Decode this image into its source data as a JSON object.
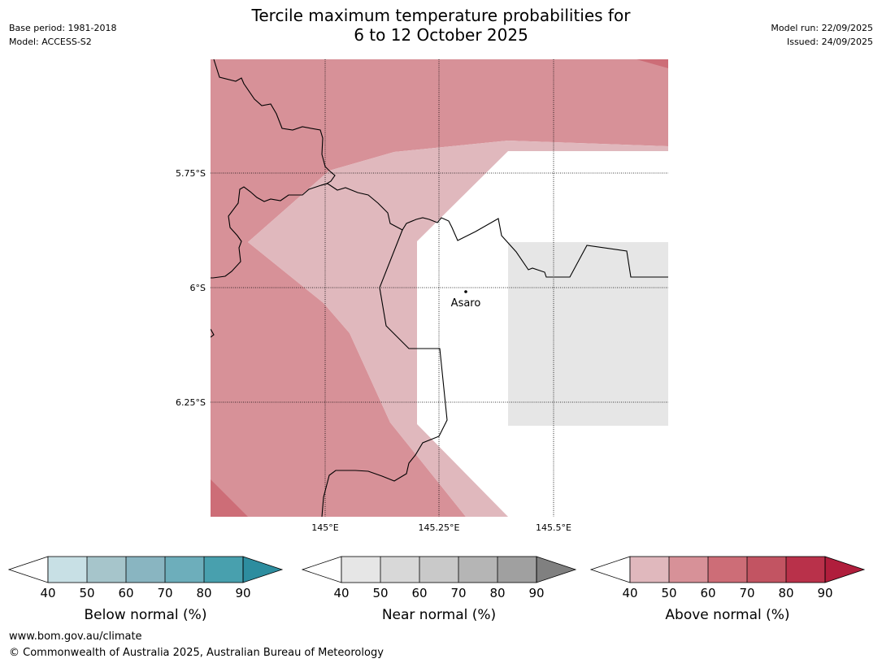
{
  "header": {
    "title_line1": "Tercile maximum temperature probabilities for",
    "title_line2": "6 to 12 October 2025",
    "base_period": "Base period: 1981-2018",
    "model": "Model: ACCESS-S2",
    "model_run": "Model run: 22/09/2025",
    "issued": "Issued: 24/09/2025"
  },
  "map": {
    "lat_labels": [
      "5.75°S",
      "6°S",
      "6.25°S"
    ],
    "lon_labels": [
      "145°E",
      "145.25°E",
      "145.5°E"
    ],
    "place": "Asaro",
    "colors": {
      "above_40": "#e0b8bd",
      "above_50": "#d79198",
      "above_60": "#cd6d77",
      "near_40": "#e6e6e6"
    }
  },
  "colorbars": [
    {
      "label": "Below normal (%)",
      "ticks": [
        "40",
        "50",
        "60",
        "70",
        "80",
        "90"
      ],
      "colors": [
        "#ffffff",
        "#c8e0e5",
        "#a6c5cb",
        "#89b5c1",
        "#6daebb",
        "#48a0ae",
        "#2d8d9f"
      ]
    },
    {
      "label": "Near normal (%)",
      "ticks": [
        "40",
        "50",
        "60",
        "70",
        "80",
        "90"
      ],
      "colors": [
        "#ffffff",
        "#e6e6e6",
        "#d8d8d8",
        "#c9c9c9",
        "#b5b5b5",
        "#a0a0a0",
        "#808080"
      ]
    },
    {
      "label": "Above normal (%)",
      "ticks": [
        "40",
        "50",
        "60",
        "70",
        "80",
        "90"
      ],
      "colors": [
        "#ffffff",
        "#e0b8bd",
        "#d79198",
        "#cd6d77",
        "#c25462",
        "#b9314a",
        "#b01e3c"
      ]
    }
  ],
  "footer": {
    "url": "www.bom.gov.au/climate",
    "copyright": "© Commonwealth of Australia 2025, Australian Bureau of Meteorology"
  }
}
